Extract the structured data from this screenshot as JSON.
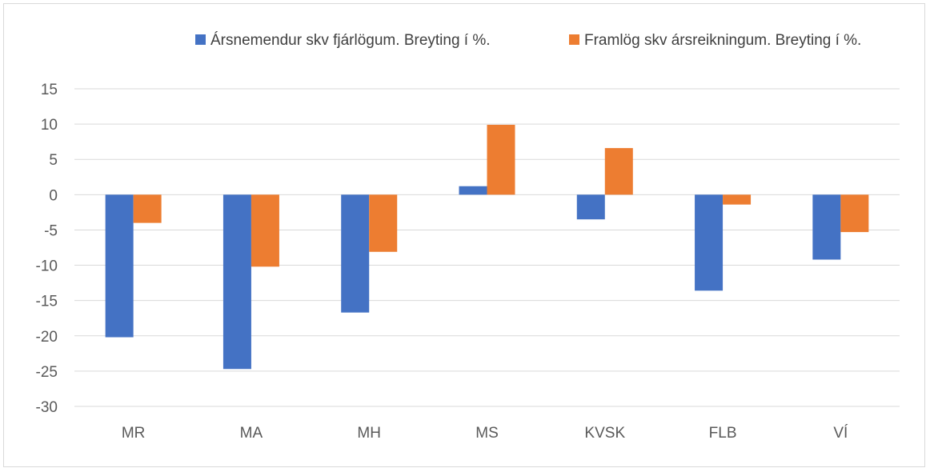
{
  "chart_data": {
    "type": "bar",
    "categories": [
      "MR",
      "MA",
      "MH",
      "MS",
      "KVSK",
      "FLB",
      "VÍ"
    ],
    "series": [
      {
        "name": "Ársnemendur skv fjárlögum. Breyting í %.",
        "color": "#4472c4",
        "values": [
          -20.2,
          -24.7,
          -16.7,
          1.2,
          -3.5,
          -13.6,
          -9.2
        ]
      },
      {
        "name": "Framlög skv ársreikningum. Breyting í %.",
        "color": "#ed7d31",
        "values": [
          -4.0,
          -10.2,
          -8.1,
          9.9,
          6.6,
          -1.4,
          -5.3
        ]
      }
    ],
    "ylim": [
      -30,
      15
    ],
    "yticks": [
      15,
      10,
      5,
      0,
      -5,
      -10,
      -15,
      -20,
      -25,
      -30
    ],
    "grid": true,
    "gridline_color": "#d9d9d9",
    "legend_position": "top-right"
  }
}
